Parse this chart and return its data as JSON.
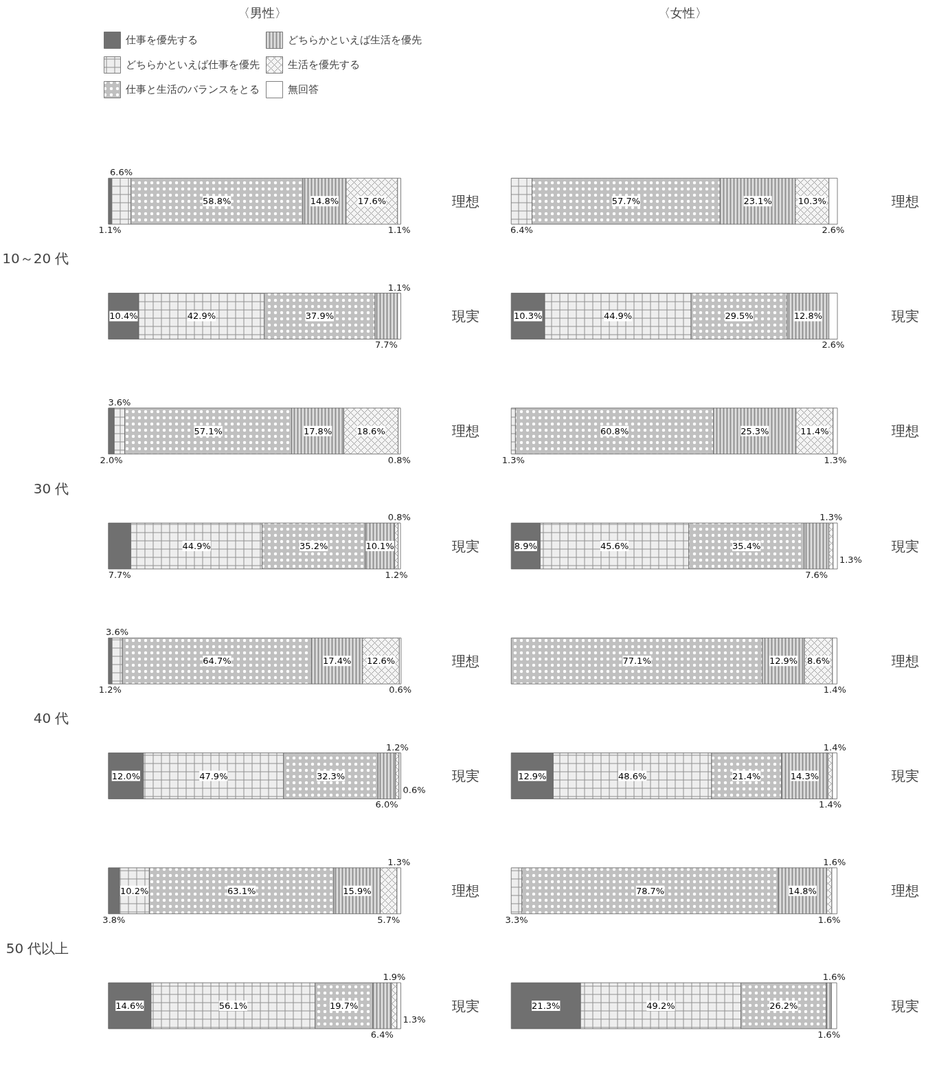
{
  "chart_data": [
    {
      "type": "bar",
      "orientation": "horizontal",
      "stacked": true,
      "title": "〈男性〉",
      "categories": [
        "理想",
        "現実",
        "理想",
        "現実",
        "理想",
        "現実",
        "理想",
        "現実"
      ],
      "legend": "top",
      "tick_labels": "y",
      "annotations": [
        "10～20 代",
        "30 代",
        "40 代",
        "50 代以上"
      ],
      "series": [
        {
          "name": "仕事を優先する",
          "color": "#707070",
          "values": [
            1.1,
            10.4,
            2.0,
            7.7,
            1.2,
            12.0,
            3.8,
            14.6
          ],
          "value_labels": [
            "1.1%",
            "10.4%",
            "2.0%",
            "7.7%",
            "1.2%",
            "12.0%",
            "3.8%",
            "14.6%"
          ]
        },
        {
          "name": "どちらかといえば仕事を優先",
          "color": "#eeeeee",
          "values": [
            6.6,
            42.9,
            3.6,
            44.9,
            3.6,
            47.9,
            10.2,
            56.1
          ],
          "value_labels": [
            "6.6%",
            "42.9%",
            "3.6%",
            "44.9%",
            "3.6%",
            "47.9%",
            "10.2%",
            "56.1%"
          ]
        },
        {
          "name": "仕事と生活のバランスをとる",
          "color": "#c0c0c0",
          "values": [
            58.8,
            37.9,
            57.1,
            35.2,
            64.7,
            32.3,
            63.1,
            19.7
          ],
          "value_labels": [
            "58.8%",
            "37.9%",
            "57.1%",
            "35.2%",
            "64.7%",
            "32.3%",
            "63.1%",
            "19.7%"
          ]
        },
        {
          "name": "どちらかといえば生活を優先",
          "color": "#dddddd",
          "values": [
            14.8,
            7.7,
            17.8,
            10.1,
            17.4,
            6.0,
            15.9,
            6.4
          ],
          "value_labels": [
            "14.8%",
            "7.7%",
            "17.8%",
            "10.1%",
            "17.4%",
            "6.0%",
            "15.9%",
            "6.4%"
          ]
        },
        {
          "name": "生活を優先する",
          "color": "#f4f4f4",
          "values": [
            17.6,
            0,
            18.6,
            1.2,
            12.6,
            1.2,
            5.7,
            1.9
          ],
          "value_labels": [
            "17.6%",
            null,
            "18.6%",
            "1.2%",
            "12.6%",
            "1.2%",
            "5.7%",
            "1.9%"
          ]
        },
        {
          "name": "無回答",
          "color": "#ffffff",
          "values": [
            1.1,
            1.1,
            0.8,
            0.8,
            0.6,
            0.6,
            1.3,
            1.3
          ],
          "value_labels": [
            "1.1%",
            "1.1%",
            "0.8%",
            "0.8%",
            "0.6%",
            "0.6%",
            "1.3%",
            "1.3%"
          ]
        }
      ]
    },
    {
      "type": "bar",
      "orientation": "horizontal",
      "stacked": true,
      "title": "〈女性〉",
      "categories": [
        "理想",
        "現実",
        "理想",
        "現実",
        "理想",
        "現実",
        "理想",
        "現実"
      ],
      "tick_labels": "y",
      "series": [
        {
          "color": "#707070",
          "values": [
            0,
            10.3,
            0,
            8.9,
            0,
            12.9,
            0,
            21.3
          ],
          "value_labels": [
            null,
            "10.3%",
            null,
            "8.9%",
            null,
            "12.9%",
            null,
            "21.3%"
          ]
        },
        {
          "color": "#eeeeee",
          "values": [
            6.4,
            44.9,
            1.3,
            45.6,
            0,
            48.6,
            3.3,
            49.2
          ],
          "value_labels": [
            "6.4%",
            "44.9%",
            "1.3%",
            "45.6%",
            null,
            "48.6%",
            "3.3%",
            "49.2%"
          ]
        },
        {
          "color": "#c0c0c0",
          "values": [
            57.7,
            29.5,
            60.8,
            35.4,
            77.1,
            21.4,
            78.7,
            26.2
          ],
          "value_labels": [
            "57.7%",
            "29.5%",
            "60.8%",
            "35.4%",
            "77.1%",
            "21.4%",
            "78.7%",
            "26.2%"
          ]
        },
        {
          "color": "#dddddd",
          "values": [
            23.1,
            12.8,
            25.3,
            7.6,
            12.9,
            14.3,
            14.8,
            1.6
          ],
          "value_labels": [
            "23.1%",
            "12.8%",
            "25.3%",
            "7.6%",
            "12.9%",
            "14.3%",
            "14.8%",
            "1.6%"
          ]
        },
        {
          "color": "#f4f4f4",
          "values": [
            10.3,
            0,
            11.4,
            1.3,
            8.6,
            1.4,
            1.6,
            0
          ],
          "value_labels": [
            "10.3%",
            null,
            "11.4%",
            "1.3%",
            "8.6%",
            "1.4%",
            "1.6%",
            null
          ]
        },
        {
          "color": "#ffffff",
          "values": [
            2.6,
            2.6,
            1.3,
            1.3,
            1.4,
            1.4,
            1.6,
            1.6
          ],
          "value_labels": [
            "2.6%",
            "2.6%",
            "1.3%",
            "1.3%",
            "1.4%",
            "1.4%",
            "1.6%",
            "1.6%"
          ]
        }
      ]
    }
  ]
}
